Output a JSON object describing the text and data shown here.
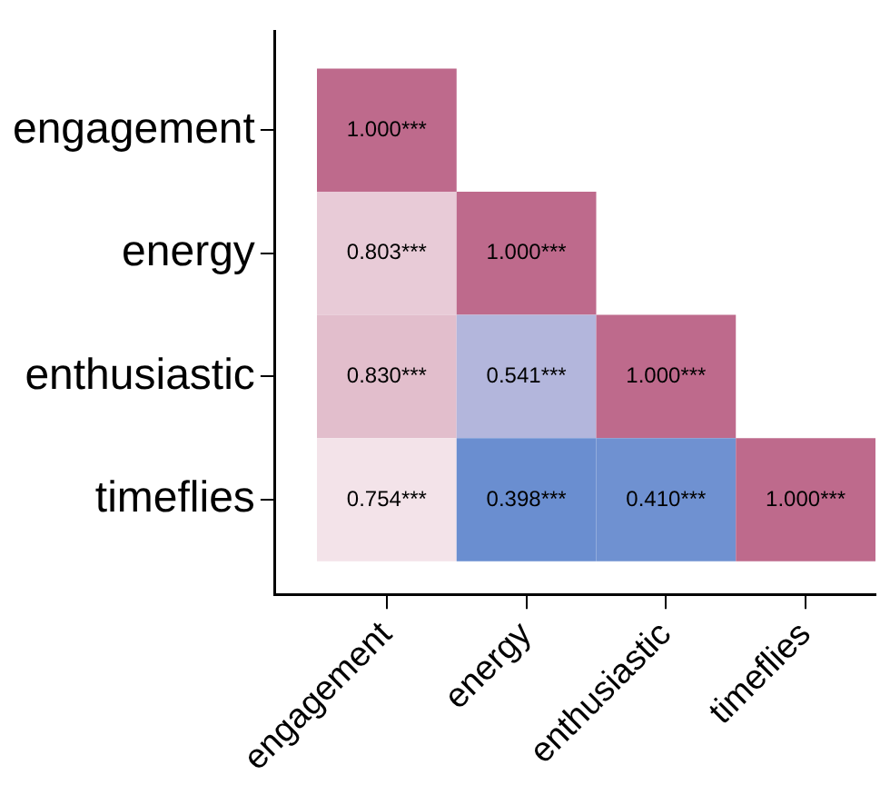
{
  "chart_data": {
    "type": "heatmap",
    "categories": [
      "engagement",
      "energy",
      "enthusiastic",
      "timeflies"
    ],
    "y_categories": [
      "engagement",
      "energy",
      "enthusiastic",
      "timeflies"
    ],
    "cells": [
      [
        1.0,
        null,
        null,
        null
      ],
      [
        0.803,
        1.0,
        null,
        null
      ],
      [
        0.83,
        0.541,
        1.0,
        null
      ],
      [
        0.754,
        0.398,
        0.41,
        1.0
      ]
    ],
    "cell_labels": [
      [
        "1.000***",
        null,
        null,
        null
      ],
      [
        "0.803***",
        "1.000***",
        null,
        null
      ],
      [
        "0.830***",
        "0.541***",
        "1.000***",
        null
      ],
      [
        "0.754***",
        "0.398***",
        "0.410***",
        "1.000***"
      ]
    ]
  }
}
